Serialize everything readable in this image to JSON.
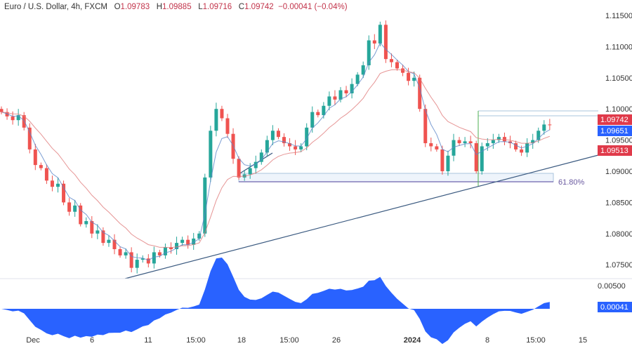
{
  "header": {
    "symbol": "Euro / U.S. Dollar, 4h, FXCM",
    "open_label": "O",
    "open": "1.09783",
    "high_label": "H",
    "high": "1.09885",
    "low_label": "L",
    "low": "1.09716",
    "close_label": "C",
    "close": "1.09742",
    "change": "−0.00041 (−0.04%)"
  },
  "chart_data": {
    "type": "candlestick",
    "interval": "4h",
    "closes": [
      1.0995,
      1.0988,
      1.0982,
      1.099,
      1.097,
      1.0935,
      1.091,
      1.0905,
      1.0885,
      1.0875,
      1.088,
      1.085,
      1.0835,
      1.0845,
      1.0815,
      1.082,
      1.08,
      1.0805,
      1.0785,
      1.079,
      1.0775,
      1.0765,
      1.077,
      1.0745,
      1.0758,
      1.076,
      1.0752,
      1.077,
      1.0765,
      1.0778,
      1.0775,
      1.0785,
      1.079,
      1.0782,
      1.0792,
      1.08,
      1.089,
      1.0965,
      1.1,
      1.0985,
      1.096,
      1.092,
      1.089,
      1.0895,
      1.0905,
      1.0915,
      1.093,
      1.095,
      1.0965,
      1.0955,
      1.0945,
      1.094,
      1.0935,
      1.094,
      1.097,
      1.0995,
      1.099,
      1.1005,
      1.102,
      1.1015,
      1.103,
      1.1025,
      1.104,
      1.1055,
      1.107,
      1.111,
      1.1105,
      1.1135,
      1.108,
      1.1075,
      1.1065,
      1.1058,
      1.1045,
      1.105,
      1.1,
      1.0945,
      1.094,
      1.0935,
      1.09,
      1.0925,
      1.095,
      1.0945,
      1.0948,
      1.0945,
      1.09,
      1.094,
      1.0945,
      1.095,
      1.0955,
      1.0948,
      1.0945,
      1.0935,
      1.093,
      1.0945,
      1.095,
      1.0965,
      1.0975,
      1.09742
    ],
    "y_ticks": [
      "1.11500",
      "1.11000",
      "1.10500",
      "1.10000",
      "1.09500",
      "1.09000",
      "1.08500",
      "1.08000",
      "1.07500"
    ],
    "y_tick_values": [
      1.115,
      1.11,
      1.105,
      1.1,
      1.095,
      1.09,
      1.085,
      1.08,
      1.075
    ],
    "x_ticks": [
      "Dec",
      "6",
      "11",
      "15:00",
      "18",
      "15:00",
      "26",
      "2024",
      "8",
      "15:00",
      "15"
    ],
    "price_labels": {
      "last": "1.09742",
      "ma_fast": "1.09651",
      "ma_slow": "1.09513"
    },
    "fib_label": "61.80%",
    "oscillator": {
      "tick": "0.00500",
      "value_label": "0.00041"
    },
    "colors": {
      "up": "#26a69a",
      "down": "#ef5350",
      "ma_fast": "#5b86c8",
      "ma_slow": "#e07b7b",
      "osc": "#2962ff",
      "trend": "#3b5a80",
      "fib": "#4a3d9a",
      "last_tag": "#e03a4a",
      "blue_tag": "#2962ff"
    }
  }
}
